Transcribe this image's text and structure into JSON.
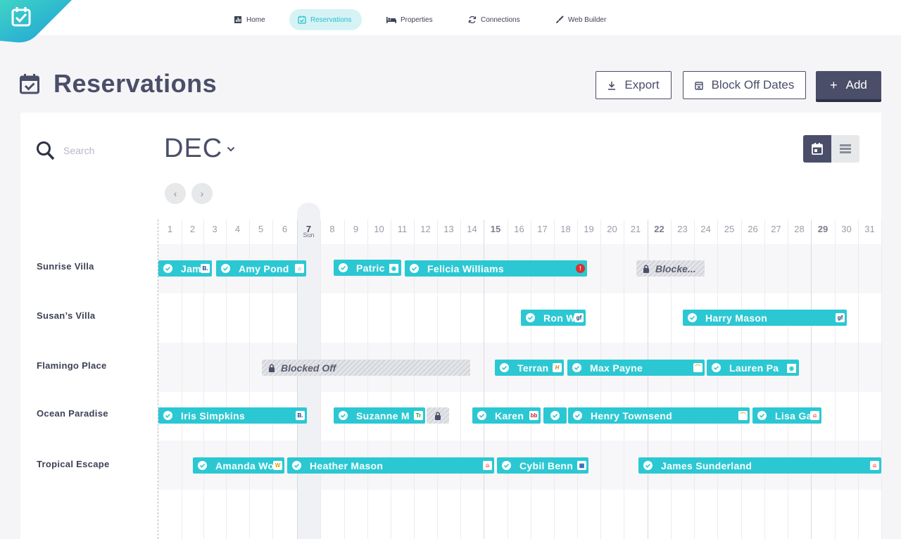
{
  "nav": {
    "items": [
      {
        "label": "Home",
        "icon": "bar-chart-icon"
      },
      {
        "label": "Reservations",
        "icon": "calendar-check-icon",
        "active": true
      },
      {
        "label": "Properties",
        "icon": "bed-icon"
      },
      {
        "label": "Connections",
        "icon": "refresh-icon"
      },
      {
        "label": "Web Builder",
        "icon": "brush-icon"
      }
    ]
  },
  "page": {
    "title": "Reservations",
    "export_label": "Export",
    "block_label": "Block Off Dates",
    "add_label": "Add"
  },
  "calendar": {
    "search_placeholder": "Search",
    "month": "DEC",
    "sunday_label": "Sun",
    "days": [
      "1",
      "2",
      "3",
      "4",
      "5",
      "6",
      "7",
      "8",
      "9",
      "10",
      "11",
      "12",
      "13",
      "14",
      "15",
      "16",
      "17",
      "18",
      "19",
      "20",
      "21",
      "22",
      "23",
      "24",
      "25",
      "26",
      "27",
      "28",
      "29",
      "30",
      "31"
    ],
    "bold_days": [
      "7",
      "15",
      "22",
      "29"
    ],
    "properties": [
      "Sunrise Villa",
      "Susan’s Villa",
      "Flamingo Place",
      "Ocean Paradise",
      "Tropical Escape"
    ],
    "reservations": [
      {
        "row": 0,
        "name": "Jam",
        "badge": "B."
      },
      {
        "row": 0,
        "name": "Amy Pond",
        "badge": "vr"
      },
      {
        "row": 0,
        "name": "Patric",
        "badge": "ta"
      },
      {
        "row": 0,
        "name": "Felicia Williams",
        "badge": "i"
      },
      {
        "row": 0,
        "name": "Blocke...",
        "blocked": true
      },
      {
        "row": 1,
        "name": "Ron W",
        "badge": "gf"
      },
      {
        "row": 1,
        "name": "Harry Mason",
        "badge": "gf"
      },
      {
        "row": 2,
        "name": "Blocked Off",
        "blocked": true
      },
      {
        "row": 2,
        "name": "Terran",
        "badge": "H"
      },
      {
        "row": 2,
        "name": "Max Payne",
        "badge": "ha"
      },
      {
        "row": 2,
        "name": "Lauren Pa",
        "badge": "ta"
      },
      {
        "row": 3,
        "name": "Iris Simpkins",
        "badge": "B."
      },
      {
        "row": 3,
        "name": "Suzanne M",
        "badge": "Tr"
      },
      {
        "row": 3,
        "name": "",
        "blocked": true
      },
      {
        "row": 3,
        "name": "Karen",
        "badge": "bb"
      },
      {
        "row": 3,
        "name": ""
      },
      {
        "row": 3,
        "name": "Henry Townsend",
        "badge": "ha"
      },
      {
        "row": 3,
        "name": "Lisa Ga",
        "badge": "ab"
      },
      {
        "row": 4,
        "name": "Amanda Wo",
        "badge": "w"
      },
      {
        "row": 4,
        "name": "Heather Mason",
        "badge": "ab"
      },
      {
        "row": 4,
        "name": "Cybil Benn",
        "badge": "hc"
      },
      {
        "row": 4,
        "name": "James Sunderland",
        "badge": "ab"
      }
    ]
  },
  "colors": {
    "accent": "#2bc8d3",
    "primary": "#4a4e69",
    "active_nav_bg": "#d5f3f5"
  }
}
